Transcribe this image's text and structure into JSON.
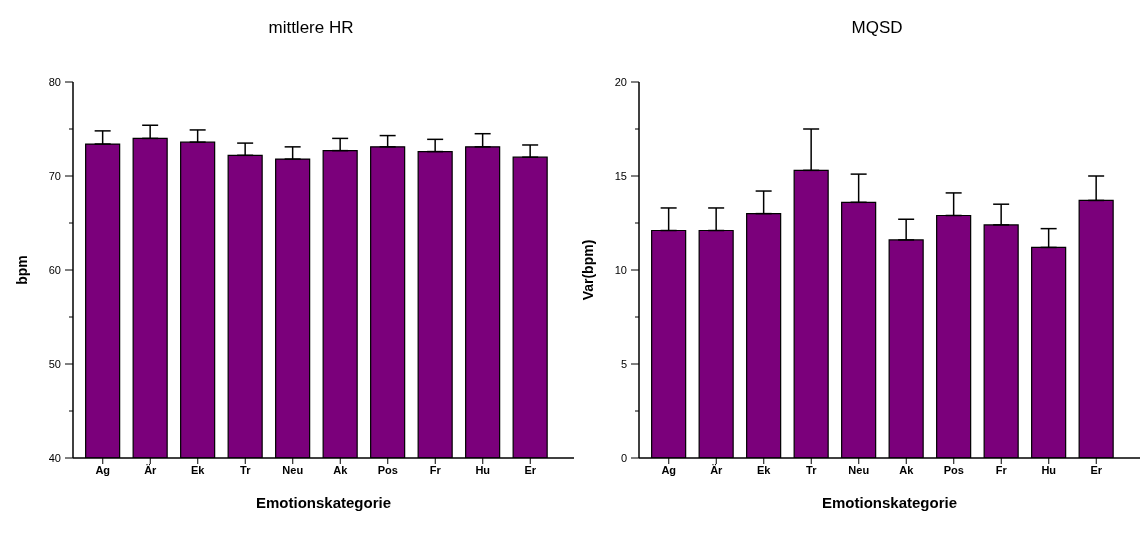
{
  "chart_data": [
    {
      "type": "bar",
      "title": "mittlere HR",
      "xlabel": "Emotionskategorie",
      "ylabel": "bpm",
      "categories": [
        "Ag",
        "Är",
        "Ek",
        "Tr",
        "Neu",
        "Ak",
        "Pos",
        "Fr",
        "Hu",
        "Er"
      ],
      "color": "#7b007b",
      "values": [
        73.4,
        74.0,
        73.6,
        72.2,
        71.8,
        72.7,
        73.1,
        72.6,
        73.1,
        72.0
      ],
      "errors": [
        [
          73.4,
          74.8
        ],
        [
          74.0,
          75.4
        ],
        [
          73.6,
          74.9
        ],
        [
          72.2,
          73.5
        ],
        [
          71.8,
          73.1
        ],
        [
          72.7,
          74.0
        ],
        [
          73.1,
          74.3
        ],
        [
          72.6,
          73.9
        ],
        [
          73.1,
          74.5
        ],
        [
          72.0,
          73.3
        ]
      ],
      "ylim": [
        40,
        80
      ],
      "yticks": [
        40,
        {
          "value": 45,
          "label": null
        },
        50,
        {
          "value": 55,
          "label": null
        },
        60,
        {
          "value": 65,
          "label": null
        },
        70,
        {
          "value": 75,
          "label": null
        },
        80
      ],
      "grid": false,
      "legend": false
    },
    {
      "type": "bar",
      "title": "MQSD",
      "xlabel": "Emotionskategorie",
      "ylabel": "Var(bpm)",
      "categories": [
        "Ag",
        "Är",
        "Ek",
        "Tr",
        "Neu",
        "Ak",
        "Pos",
        "Fr",
        "Hu",
        "Er"
      ],
      "color": "#7b007b",
      "values": [
        12.1,
        12.1,
        13.0,
        15.3,
        13.6,
        11.6,
        12.9,
        12.4,
        11.2,
        13.7
      ],
      "errors": [
        [
          12.1,
          13.3
        ],
        [
          12.1,
          13.3
        ],
        [
          13.0,
          14.2
        ],
        [
          15.3,
          17.5
        ],
        [
          13.6,
          15.1
        ],
        [
          11.6,
          12.7
        ],
        [
          12.9,
          14.1
        ],
        [
          12.4,
          13.5
        ],
        [
          11.2,
          12.2
        ],
        [
          13.7,
          15.0
        ]
      ],
      "ylim": [
        0,
        20
      ],
      "yticks": [
        0,
        {
          "value": 2.5,
          "label": null
        },
        5,
        {
          "value": 7.5,
          "label": null
        },
        10,
        {
          "value": 12.5,
          "label": null
        },
        15,
        {
          "value": 17.5,
          "label": null
        },
        20
      ],
      "grid": false,
      "legend": false
    }
  ]
}
